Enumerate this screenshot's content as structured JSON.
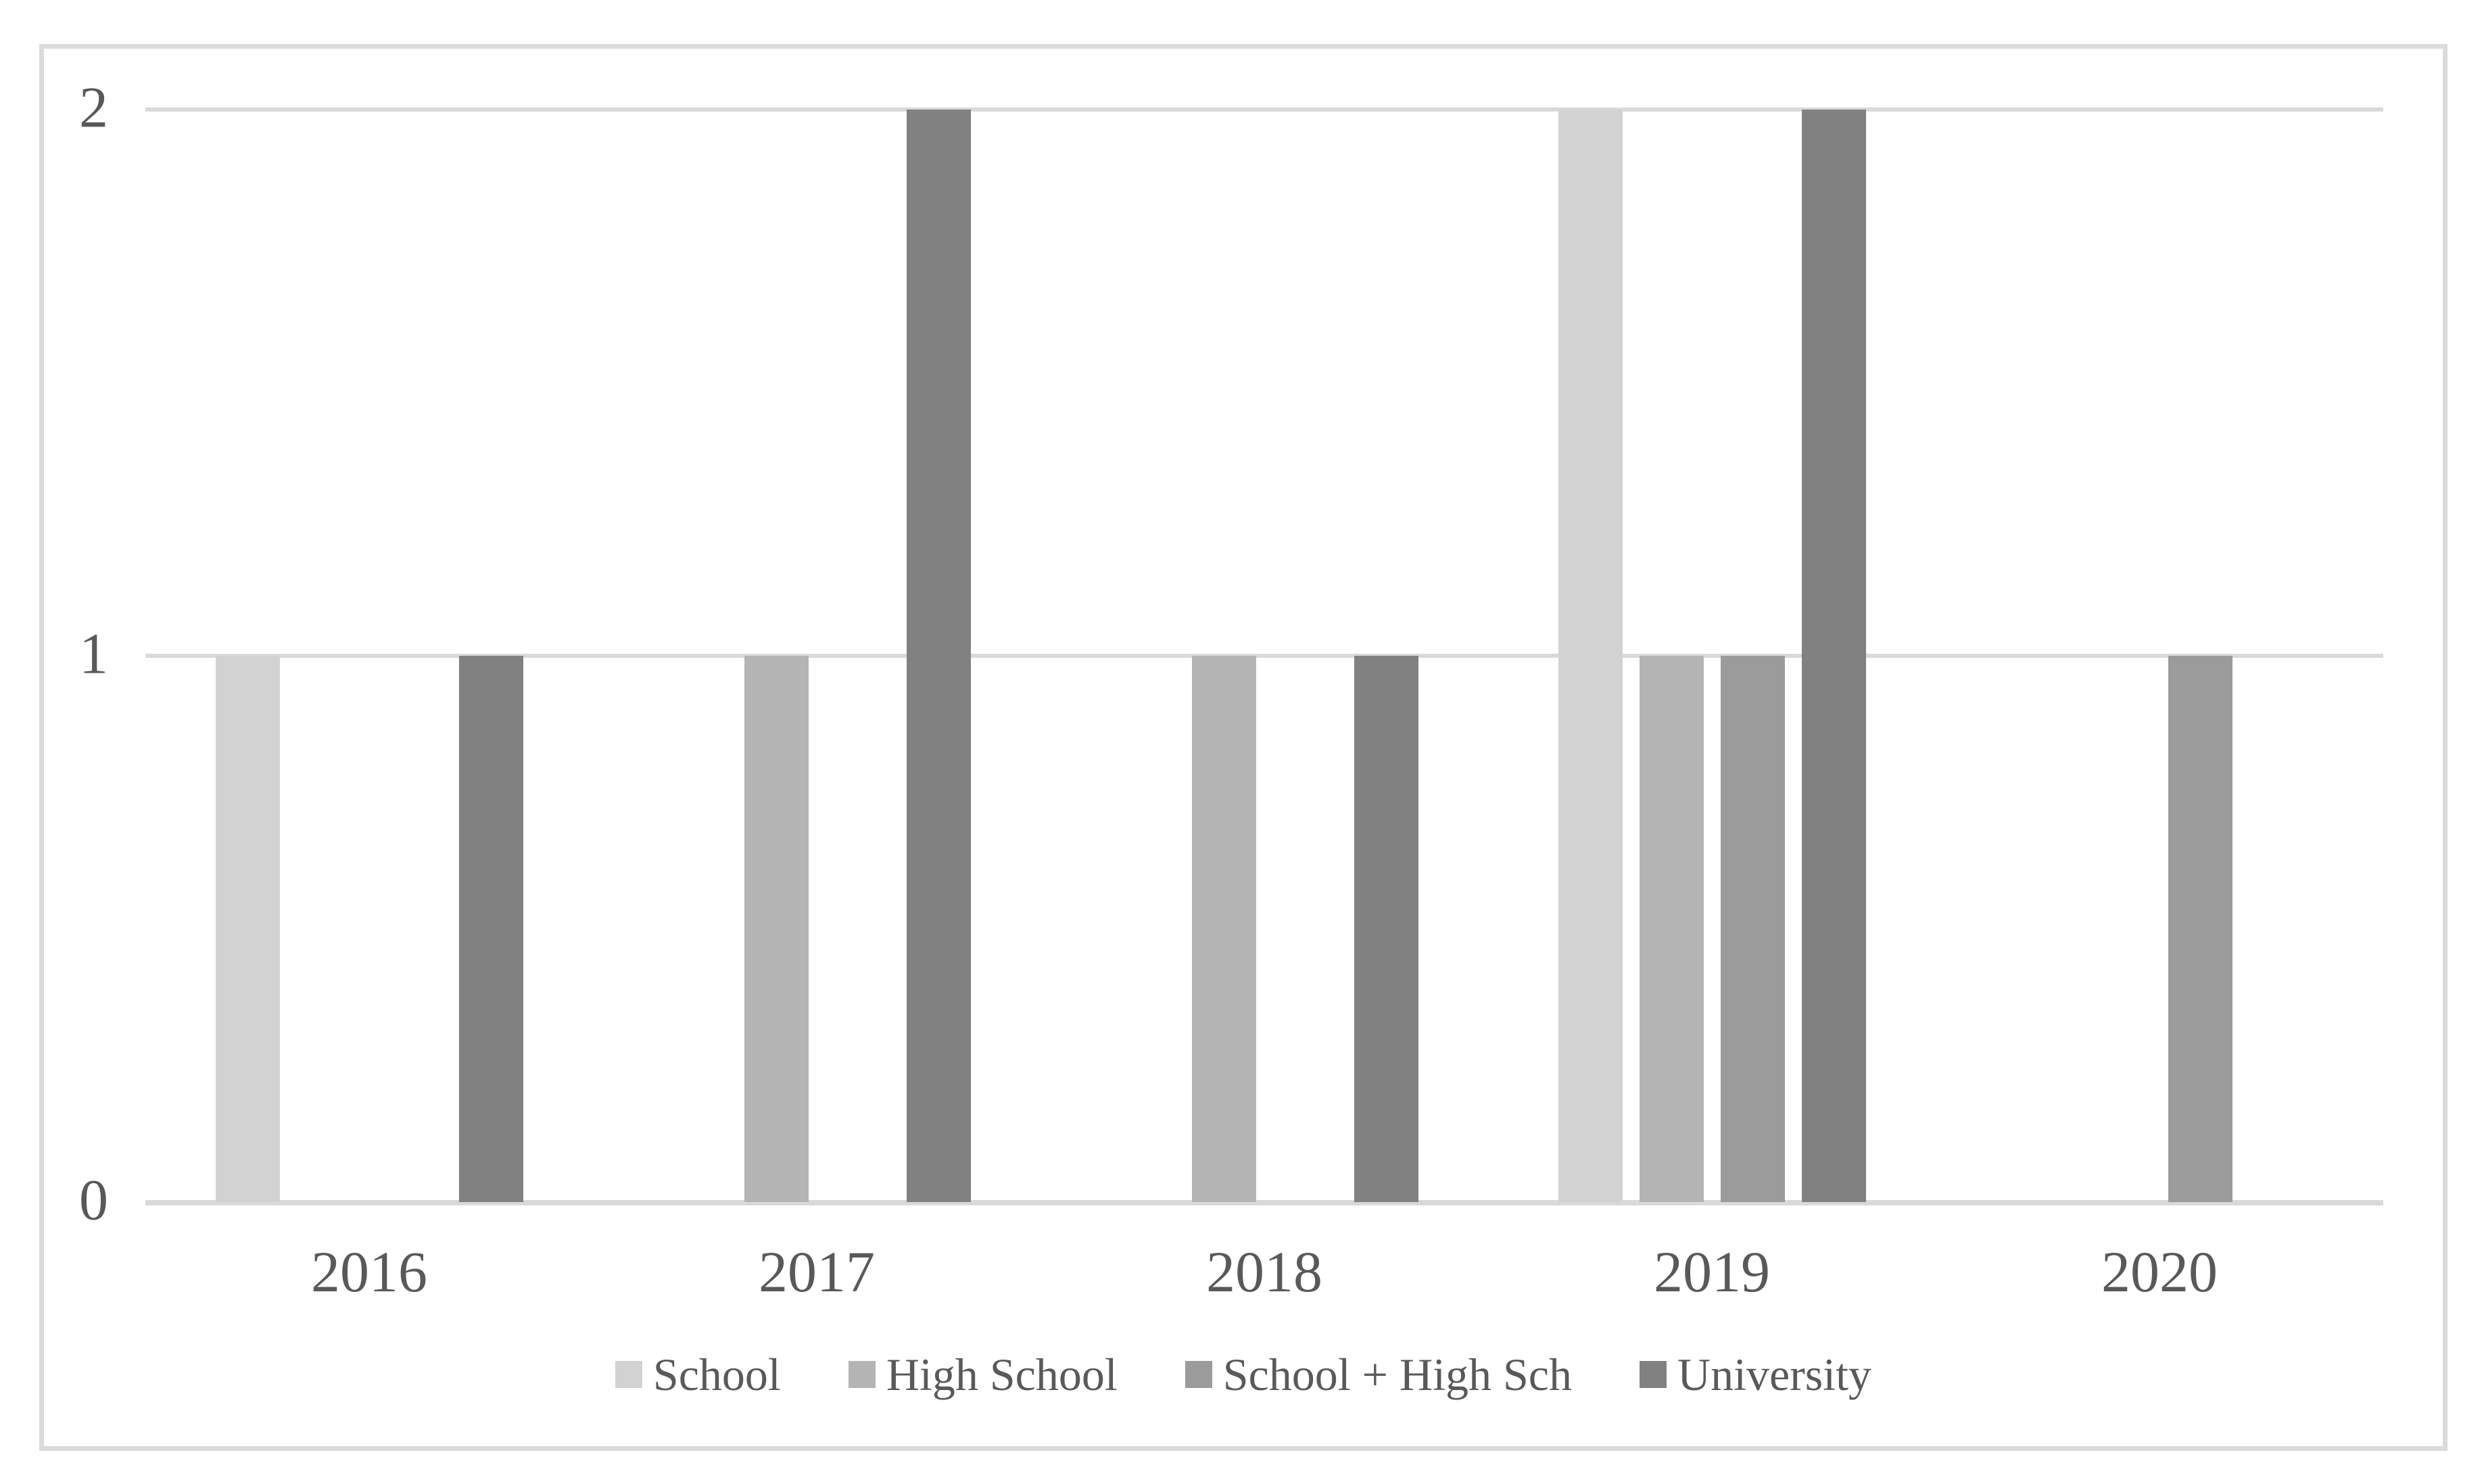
{
  "figure": {
    "background": "#ffffff",
    "border_color": "#dbdbdb"
  },
  "chart_data": {
    "type": "bar",
    "title": "",
    "xlabel": "",
    "ylabel": "",
    "categories": [
      "2016",
      "2017",
      "2018",
      "2019",
      "2020"
    ],
    "series": [
      {
        "name": "School",
        "color": "#d2d2d2",
        "values": [
          1,
          0,
          0,
          2,
          0
        ]
      },
      {
        "name": "High School",
        "color": "#b4b4b4",
        "values": [
          0,
          1,
          1,
          1,
          0
        ]
      },
      {
        "name": "School + High Sch",
        "color": "#9b9b9b",
        "values": [
          0,
          0,
          0,
          1,
          1
        ]
      },
      {
        "name": "University",
        "color": "#818181",
        "values": [
          1,
          2,
          1,
          2,
          0
        ]
      }
    ],
    "ylim": [
      0,
      2
    ],
    "yticks": [
      0,
      1,
      2
    ],
    "ytick_labels": [
      "0",
      "1",
      "2"
    ],
    "grid": "horizontal",
    "gridline_color": "#d9d9d9",
    "axis_line_color": "#d9d9d9",
    "tick_label_color": "#595959",
    "legend_position": "bottom"
  }
}
